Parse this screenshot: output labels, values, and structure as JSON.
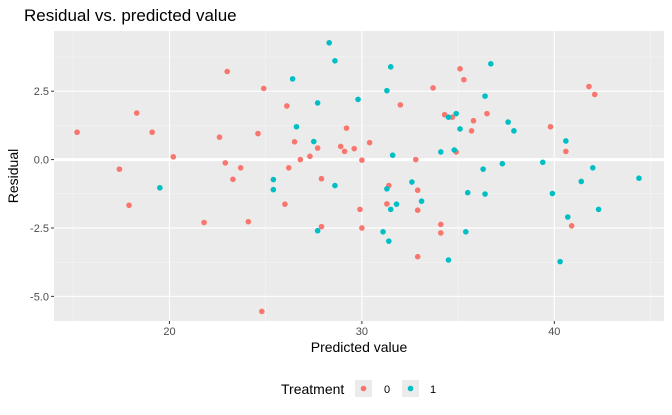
{
  "chart_data": {
    "type": "scatter",
    "title": "Residual vs. predicted value",
    "xlabel": "Predicted value",
    "ylabel": "Residual",
    "xlim": [
      14.0,
      45.7
    ],
    "ylim": [
      -5.9,
      4.7
    ],
    "x_ticks": [
      20,
      30,
      40
    ],
    "y_ticks": [
      -5.0,
      -2.5,
      0.0,
      2.5
    ],
    "x_tick_labels": [
      "20",
      "30",
      "40"
    ],
    "y_tick_labels": [
      "-5.0",
      "-2.5",
      "0.0",
      "2.5"
    ],
    "grid": true,
    "reference_line_y": 0,
    "legend": {
      "title": "Treatment",
      "position": "bottom"
    },
    "series": [
      {
        "name": "0",
        "color": "#F8766D",
        "points": [
          [
            15.2,
            1.0
          ],
          [
            17.4,
            -0.35
          ],
          [
            17.9,
            -1.67
          ],
          [
            18.3,
            1.7
          ],
          [
            19.1,
            1.0
          ],
          [
            20.2,
            0.1
          ],
          [
            21.8,
            -2.3
          ],
          [
            22.6,
            0.82
          ],
          [
            22.9,
            -0.12
          ],
          [
            23.0,
            3.22
          ],
          [
            23.3,
            -0.72
          ],
          [
            23.7,
            -0.3
          ],
          [
            24.1,
            -2.27
          ],
          [
            24.6,
            0.95
          ],
          [
            24.8,
            -5.55
          ],
          [
            24.9,
            2.6
          ],
          [
            26.0,
            -1.63
          ],
          [
            26.1,
            1.96
          ],
          [
            26.2,
            -0.3
          ],
          [
            26.5,
            0.65
          ],
          [
            26.8,
            0.0
          ],
          [
            27.3,
            0.12
          ],
          [
            27.7,
            0.42
          ],
          [
            27.9,
            -0.7
          ],
          [
            27.9,
            -2.45
          ],
          [
            28.9,
            0.48
          ],
          [
            29.1,
            0.3
          ],
          [
            29.2,
            1.15
          ],
          [
            29.6,
            0.4
          ],
          [
            29.9,
            -1.82
          ],
          [
            30.0,
            -0.02
          ],
          [
            30.0,
            -2.5
          ],
          [
            30.4,
            0.62
          ],
          [
            31.3,
            -1.62
          ],
          [
            31.4,
            -0.95
          ],
          [
            32.0,
            2.0
          ],
          [
            32.8,
            0.0
          ],
          [
            32.9,
            -1.12
          ],
          [
            32.9,
            -1.85
          ],
          [
            32.9,
            -3.55
          ],
          [
            33.7,
            2.62
          ],
          [
            34.1,
            -2.68
          ],
          [
            34.1,
            -2.37
          ],
          [
            34.3,
            1.64
          ],
          [
            34.7,
            1.55
          ],
          [
            34.9,
            0.28
          ],
          [
            35.1,
            3.32
          ],
          [
            35.3,
            2.92
          ],
          [
            35.7,
            1.05
          ],
          [
            35.8,
            1.42
          ],
          [
            36.5,
            1.68
          ],
          [
            39.8,
            1.2
          ],
          [
            40.6,
            0.3
          ],
          [
            40.9,
            -2.42
          ],
          [
            41.8,
            2.67
          ],
          [
            42.1,
            2.38
          ]
        ]
      },
      {
        "name": "1",
        "color": "#00BFC4",
        "points": [
          [
            19.5,
            -1.03
          ],
          [
            25.4,
            -0.73
          ],
          [
            25.4,
            -1.1
          ],
          [
            26.4,
            2.95
          ],
          [
            26.6,
            1.2
          ],
          [
            27.5,
            0.66
          ],
          [
            27.7,
            2.07
          ],
          [
            27.7,
            -2.6
          ],
          [
            28.3,
            4.27
          ],
          [
            28.6,
            3.61
          ],
          [
            28.6,
            -0.95
          ],
          [
            29.8,
            2.2
          ],
          [
            31.1,
            -2.64
          ],
          [
            31.3,
            -1.07
          ],
          [
            31.3,
            2.52
          ],
          [
            31.4,
            -2.98
          ],
          [
            31.5,
            -1.82
          ],
          [
            31.5,
            3.39
          ],
          [
            31.6,
            0.16
          ],
          [
            31.8,
            -1.63
          ],
          [
            32.6,
            -0.82
          ],
          [
            33.1,
            -1.52
          ],
          [
            34.1,
            0.28
          ],
          [
            34.5,
            1.55
          ],
          [
            34.5,
            -3.67
          ],
          [
            34.8,
            0.35
          ],
          [
            34.9,
            1.68
          ],
          [
            35.1,
            1.12
          ],
          [
            35.4,
            -2.64
          ],
          [
            35.5,
            -1.21
          ],
          [
            36.3,
            -0.35
          ],
          [
            36.4,
            2.32
          ],
          [
            36.4,
            -1.26
          ],
          [
            36.7,
            3.5
          ],
          [
            37.3,
            -0.15
          ],
          [
            37.6,
            1.37
          ],
          [
            37.9,
            1.05
          ],
          [
            39.4,
            -0.1
          ],
          [
            39.9,
            -1.24
          ],
          [
            40.3,
            -3.73
          ],
          [
            40.6,
            0.68
          ],
          [
            40.7,
            -2.1
          ],
          [
            41.4,
            -0.8
          ],
          [
            42.0,
            -0.3
          ],
          [
            42.3,
            -1.82
          ],
          [
            44.4,
            -0.68
          ]
        ]
      }
    ]
  }
}
